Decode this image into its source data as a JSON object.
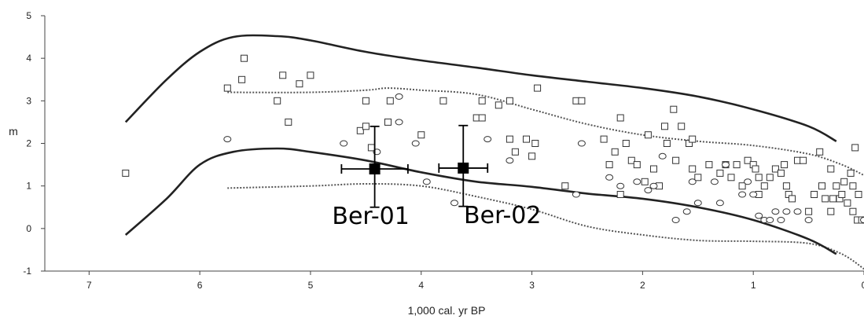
{
  "chart_data": {
    "type": "scatter",
    "title": "",
    "xlabel": "1,000 cal. yr BP",
    "ylabel": "m",
    "xlim": [
      7.4,
      0
    ],
    "ylim": [
      -1,
      5
    ],
    "x_ticks": [
      "7",
      "6",
      "5",
      "4",
      "3",
      "2",
      "1",
      "0"
    ],
    "y_ticks": [
      "-1",
      "0",
      "1",
      "2",
      "3",
      "4",
      "5"
    ],
    "envelope_upper": [
      [
        6.67,
        2.5
      ],
      [
        6.3,
        3.5
      ],
      [
        6.0,
        4.15
      ],
      [
        5.7,
        4.5
      ],
      [
        5.3,
        4.52
      ],
      [
        5.0,
        4.42
      ],
      [
        4.5,
        4.15
      ],
      [
        4.0,
        3.95
      ],
      [
        3.5,
        3.78
      ],
      [
        3.0,
        3.6
      ],
      [
        2.5,
        3.45
      ],
      [
        2.0,
        3.3
      ],
      [
        1.5,
        3.1
      ],
      [
        1.0,
        2.8
      ],
      [
        0.5,
        2.4
      ],
      [
        0.25,
        2.05
      ]
    ],
    "envelope_lower": [
      [
        6.67,
        -0.15
      ],
      [
        6.3,
        0.7
      ],
      [
        6.0,
        1.5
      ],
      [
        5.7,
        1.8
      ],
      [
        5.3,
        1.88
      ],
      [
        5.0,
        1.8
      ],
      [
        4.5,
        1.6
      ],
      [
        4.0,
        1.32
      ],
      [
        3.5,
        1.1
      ],
      [
        3.0,
        0.98
      ],
      [
        2.5,
        0.82
      ],
      [
        2.0,
        0.7
      ],
      [
        1.5,
        0.5
      ],
      [
        1.0,
        0.2
      ],
      [
        0.5,
        -0.25
      ],
      [
        0.25,
        -0.6
      ]
    ],
    "band_upper": [
      [
        5.75,
        3.2
      ],
      [
        5.0,
        3.2
      ],
      [
        4.5,
        3.25
      ],
      [
        4.3,
        3.3
      ],
      [
        4.0,
        3.25
      ],
      [
        3.5,
        3.15
      ],
      [
        3.0,
        2.8
      ],
      [
        2.5,
        2.45
      ],
      [
        2.0,
        2.2
      ],
      [
        1.5,
        2.05
      ],
      [
        1.0,
        1.95
      ],
      [
        0.5,
        1.75
      ],
      [
        0.2,
        1.5
      ],
      [
        0.0,
        1.25
      ]
    ],
    "band_lower": [
      [
        5.75,
        0.95
      ],
      [
        5.0,
        1.0
      ],
      [
        4.5,
        1.05
      ],
      [
        4.0,
        1.0
      ],
      [
        3.5,
        0.75
      ],
      [
        3.0,
        0.45
      ],
      [
        2.5,
        0.05
      ],
      [
        2.0,
        -0.15
      ],
      [
        1.5,
        -0.28
      ],
      [
        1.0,
        -0.3
      ],
      [
        0.5,
        -0.35
      ],
      [
        0.2,
        -0.6
      ],
      [
        0.0,
        -0.95
      ]
    ],
    "series": [
      {
        "marker": "square",
        "points": [
          [
            6.67,
            1.3
          ],
          [
            5.75,
            3.3
          ],
          [
            5.6,
            4.0
          ],
          [
            5.62,
            3.5
          ],
          [
            5.3,
            3.0
          ],
          [
            5.25,
            3.6
          ],
          [
            5.2,
            2.5
          ],
          [
            5.1,
            3.4
          ],
          [
            5.0,
            3.6
          ],
          [
            4.55,
            2.3
          ],
          [
            4.5,
            2.4
          ],
          [
            4.5,
            3.0
          ],
          [
            4.45,
            1.9
          ],
          [
            4.3,
            2.5
          ],
          [
            4.28,
            3.0
          ],
          [
            4.0,
            2.2
          ],
          [
            3.8,
            3.0
          ],
          [
            3.5,
            2.6
          ],
          [
            3.45,
            3.0
          ],
          [
            3.45,
            2.6
          ],
          [
            3.3,
            2.9
          ],
          [
            3.2,
            3.0
          ],
          [
            3.2,
            2.1
          ],
          [
            3.15,
            1.8
          ],
          [
            3.05,
            2.1
          ],
          [
            3.0,
            1.7
          ],
          [
            2.97,
            2.0
          ],
          [
            2.95,
            3.3
          ],
          [
            2.7,
            1.0
          ],
          [
            2.6,
            3.0
          ],
          [
            2.55,
            3.0
          ],
          [
            2.35,
            2.1
          ],
          [
            2.3,
            1.5
          ],
          [
            2.25,
            1.8
          ],
          [
            2.2,
            2.6
          ],
          [
            2.2,
            0.8
          ],
          [
            2.15,
            2.0
          ],
          [
            2.1,
            1.6
          ],
          [
            2.05,
            1.5
          ],
          [
            1.98,
            1.1
          ],
          [
            1.95,
            2.2
          ],
          [
            1.9,
            1.4
          ],
          [
            1.85,
            1.0
          ],
          [
            1.8,
            2.4
          ],
          [
            1.78,
            2.0
          ],
          [
            1.72,
            2.8
          ],
          [
            1.7,
            1.6
          ],
          [
            1.65,
            2.4
          ],
          [
            1.58,
            2.0
          ],
          [
            1.55,
            2.1
          ],
          [
            1.55,
            1.4
          ],
          [
            1.5,
            1.2
          ],
          [
            1.4,
            1.5
          ],
          [
            1.3,
            1.3
          ],
          [
            1.25,
            1.5
          ],
          [
            1.2,
            1.2
          ],
          [
            1.15,
            1.5
          ],
          [
            1.1,
            1.0
          ],
          [
            1.05,
            1.6
          ],
          [
            1.0,
            1.5
          ],
          [
            0.98,
            1.4
          ],
          [
            0.95,
            1.2
          ],
          [
            0.95,
            0.8
          ],
          [
            0.9,
            1.0
          ],
          [
            0.85,
            1.2
          ],
          [
            0.8,
            1.4
          ],
          [
            0.75,
            1.3
          ],
          [
            0.72,
            1.5
          ],
          [
            0.7,
            1.0
          ],
          [
            0.68,
            0.8
          ],
          [
            0.65,
            0.7
          ],
          [
            0.6,
            1.6
          ],
          [
            0.55,
            1.6
          ],
          [
            0.5,
            0.4
          ],
          [
            0.45,
            0.8
          ],
          [
            0.4,
            1.8
          ],
          [
            0.38,
            1.0
          ],
          [
            0.35,
            0.7
          ],
          [
            0.3,
            1.4
          ],
          [
            0.3,
            0.4
          ],
          [
            0.28,
            0.7
          ],
          [
            0.25,
            1.0
          ],
          [
            0.22,
            0.7
          ],
          [
            0.2,
            0.8
          ],
          [
            0.18,
            1.1
          ],
          [
            0.15,
            0.6
          ],
          [
            0.12,
            1.3
          ],
          [
            0.1,
            1.0
          ],
          [
            0.1,
            0.4
          ],
          [
            0.08,
            1.9
          ],
          [
            0.06,
            0.2
          ],
          [
            0.05,
            0.8
          ],
          [
            0.02,
            0.2
          ]
        ]
      },
      {
        "marker": "circle",
        "points": [
          [
            5.75,
            2.1
          ],
          [
            4.7,
            2.0
          ],
          [
            4.4,
            1.8
          ],
          [
            4.2,
            3.1
          ],
          [
            4.2,
            2.5
          ],
          [
            4.05,
            2.0
          ],
          [
            3.95,
            1.1
          ],
          [
            3.7,
            0.6
          ],
          [
            3.4,
            2.1
          ],
          [
            3.2,
            1.6
          ],
          [
            2.6,
            0.8
          ],
          [
            2.55,
            2.0
          ],
          [
            2.3,
            1.2
          ],
          [
            2.2,
            1.0
          ],
          [
            2.05,
            1.1
          ],
          [
            1.95,
            0.9
          ],
          [
            1.9,
            1.0
          ],
          [
            1.82,
            1.7
          ],
          [
            1.7,
            0.2
          ],
          [
            1.6,
            0.4
          ],
          [
            1.55,
            1.1
          ],
          [
            1.5,
            0.6
          ],
          [
            1.35,
            1.1
          ],
          [
            1.3,
            0.6
          ],
          [
            1.25,
            1.5
          ],
          [
            1.1,
            0.8
          ],
          [
            1.05,
            1.1
          ],
          [
            1.0,
            0.8
          ],
          [
            0.95,
            0.3
          ],
          [
            0.9,
            0.2
          ],
          [
            0.85,
            0.2
          ],
          [
            0.8,
            0.4
          ],
          [
            0.75,
            0.2
          ],
          [
            0.7,
            0.4
          ],
          [
            0.6,
            0.4
          ],
          [
            0.5,
            0.2
          ],
          [
            0.0,
            0.2
          ]
        ]
      }
    ],
    "samples": [
      {
        "label": "Ber-01",
        "x": 4.42,
        "y": 1.4,
        "x_err": 0.3,
        "y_err_low": 0.9,
        "y_err_high": 1.0
      },
      {
        "label": "Ber-02",
        "x": 3.62,
        "y": 1.42,
        "x_err": 0.22,
        "y_err_low": 0.9,
        "y_err_high": 1.0
      }
    ],
    "grid": false,
    "legend": "none"
  }
}
